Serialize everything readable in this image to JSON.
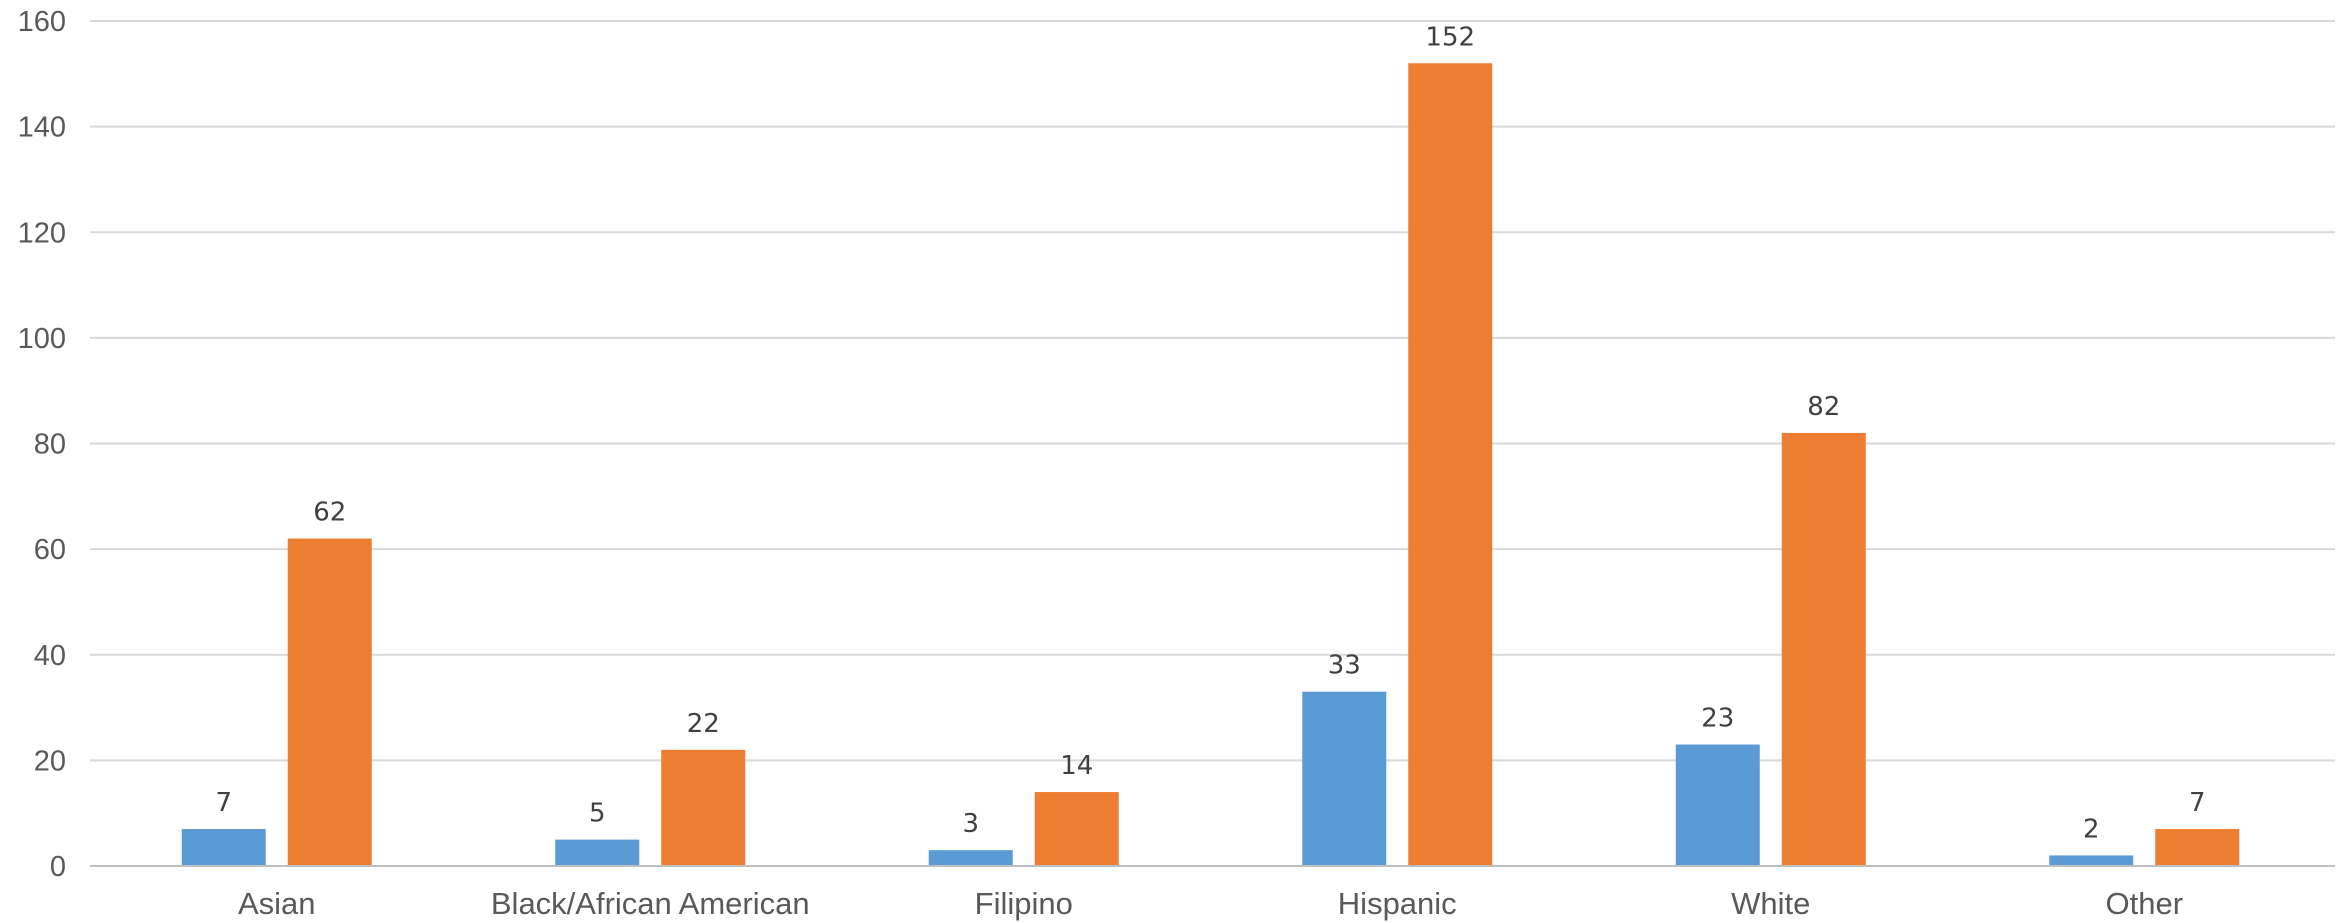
{
  "chart_data": {
    "type": "bar",
    "title": "",
    "xlabel": "",
    "ylabel": "",
    "categories": [
      "Asian",
      "Black/African American",
      "Filipino",
      "Hispanic",
      "White",
      "Other"
    ],
    "series": [
      {
        "values": [
          7,
          5,
          3,
          33,
          23,
          2
        ],
        "color": "#5b9bd5"
      },
      {
        "values": [
          62,
          22,
          14,
          152,
          82,
          7
        ],
        "color": "#ed7d31"
      }
    ],
    "ylim": [
      0,
      160
    ],
    "yticks": [
      0,
      20,
      40,
      60,
      80,
      100,
      120,
      140,
      160
    ],
    "grid": true,
    "data_labels": true,
    "legend": "none"
  }
}
